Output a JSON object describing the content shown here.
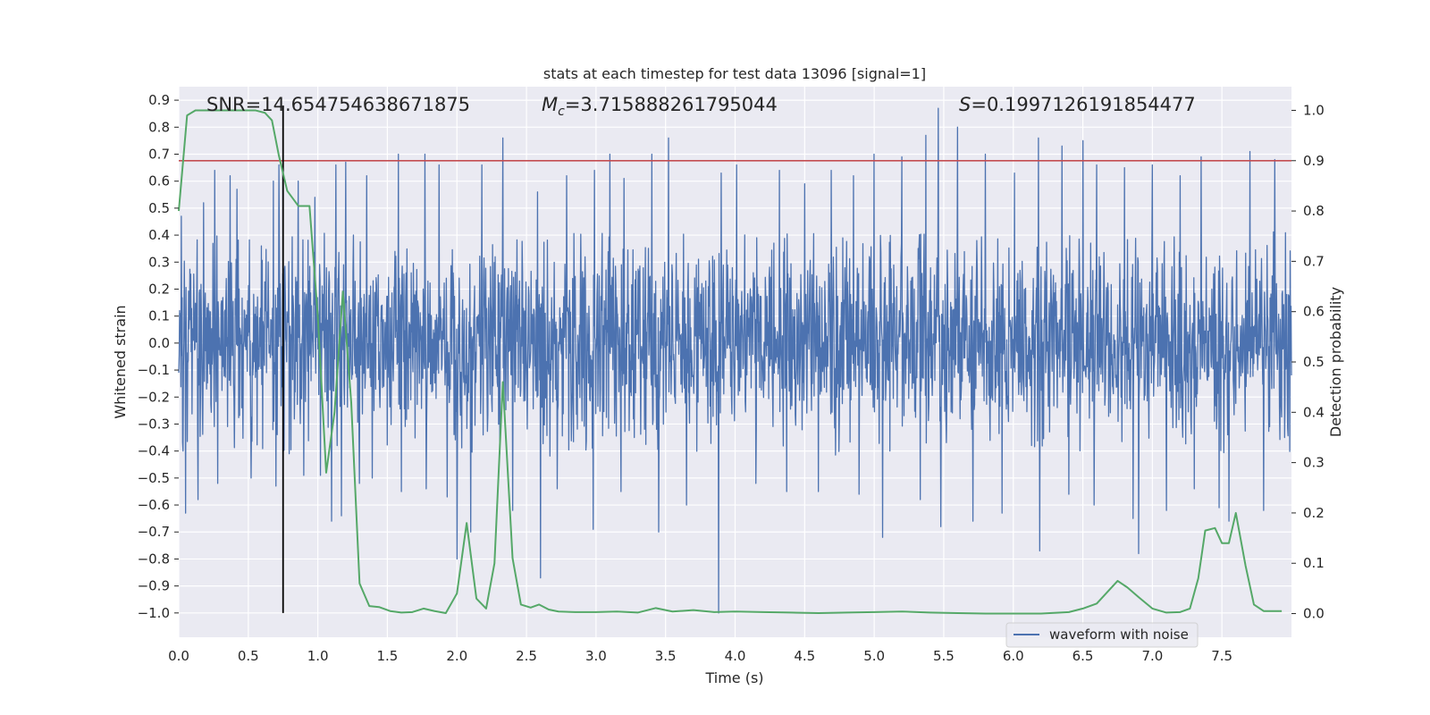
{
  "chart_data": {
    "type": "line",
    "title": "stats at each timestep for test data 13096 [signal=1]",
    "xlabel": "Time (s)",
    "ylabel": "Whitened strain",
    "ylabel_right": "Detection probability",
    "xlim": [
      0.0,
      8.0
    ],
    "ylim": [
      -1.09,
      0.95
    ],
    "ylim_right": [
      -0.047,
      1.047
    ],
    "xticks": [
      0.0,
      0.5,
      1.0,
      1.5,
      2.0,
      2.5,
      3.0,
      3.5,
      4.0,
      4.5,
      5.0,
      5.5,
      6.0,
      6.5,
      7.0,
      7.5
    ],
    "xtick_labels": [
      "0.0",
      "0.5",
      "1.0",
      "1.5",
      "2.0",
      "2.5",
      "3.0",
      "3.5",
      "4.0",
      "4.5",
      "5.0",
      "5.5",
      "6.0",
      "6.5",
      "7.0",
      "7.5"
    ],
    "yticks": [
      0.9,
      0.8,
      0.7,
      0.6,
      0.5,
      0.4,
      0.3,
      0.2,
      0.1,
      0.0,
      -0.1,
      -0.2,
      -0.3,
      -0.4,
      -0.5,
      -0.6,
      -0.7,
      -0.8,
      -0.9,
      -1.0
    ],
    "ytick_labels": [
      "0.9",
      "0.8",
      "0.7",
      "0.6",
      "0.5",
      "0.4",
      "0.3",
      "0.2",
      "0.1",
      "0.0",
      "−0.1",
      "−0.2",
      "−0.3",
      "−0.4",
      "−0.5",
      "−0.6",
      "−0.7",
      "−0.8",
      "−0.9",
      "−1.0"
    ],
    "yticks_right": [
      1.0,
      0.9,
      0.8,
      0.7,
      0.6,
      0.5,
      0.4,
      0.3,
      0.2,
      0.1,
      0.0
    ],
    "ytick_labels_right": [
      "1.0",
      "0.9",
      "0.8",
      "0.7",
      "0.6",
      "0.5",
      "0.4",
      "0.3",
      "0.2",
      "0.1",
      "0.0"
    ],
    "annotations": {
      "snr": "SNR=14.654754638671875",
      "mc_symbol": "M",
      "mc_sub": "c",
      "mc_value": "=3.715888261795044",
      "s_symbol": "S",
      "s_value": "=0.1997126191854477"
    },
    "legend": {
      "label": "waveform with noise",
      "position": "lower-right"
    },
    "threshold_line": {
      "axis": "right",
      "value": 0.9,
      "color": "#c44e52"
    },
    "marker_line": {
      "x": 0.75,
      "y_from": -1.0,
      "y_to": 0.88,
      "color": "#000000"
    },
    "waveform": {
      "name": "waveform with noise",
      "color": "#4c72b0",
      "t_start": 0.0,
      "t_end": 8.0,
      "typical_envelope": [
        -0.42,
        0.42
      ],
      "peaks_up": [
        [
          0.02,
          0.47
        ],
        [
          0.05,
          0.55
        ],
        [
          0.18,
          0.52
        ],
        [
          0.26,
          0.64
        ],
        [
          0.37,
          0.62
        ],
        [
          0.42,
          0.57
        ],
        [
          0.52,
          0.66
        ],
        [
          0.68,
          0.6
        ],
        [
          0.72,
          0.66
        ],
        [
          0.86,
          0.6
        ],
        [
          0.98,
          0.54
        ],
        [
          1.13,
          0.66
        ],
        [
          1.2,
          0.67
        ],
        [
          1.35,
          0.62
        ],
        [
          1.58,
          0.7
        ],
        [
          1.77,
          0.7
        ],
        [
          1.87,
          0.66
        ],
        [
          2.1,
          0.58
        ],
        [
          2.18,
          0.66
        ],
        [
          2.33,
          0.76
        ],
        [
          2.58,
          0.56
        ],
        [
          2.79,
          0.62
        ],
        [
          2.99,
          0.64
        ],
        [
          3.1,
          0.7
        ],
        [
          3.2,
          0.61
        ],
        [
          3.4,
          0.7
        ],
        [
          3.52,
          0.76
        ],
        [
          3.65,
          0.61
        ],
        [
          3.9,
          0.63
        ],
        [
          4.01,
          0.66
        ],
        [
          4.32,
          0.64
        ],
        [
          4.5,
          0.59
        ],
        [
          4.69,
          0.64
        ],
        [
          4.85,
          0.62
        ],
        [
          5.0,
          0.7
        ],
        [
          5.2,
          0.69
        ],
        [
          5.37,
          0.77
        ],
        [
          5.46,
          0.87
        ],
        [
          5.6,
          0.8
        ],
        [
          5.8,
          0.7
        ],
        [
          6.01,
          0.63
        ],
        [
          6.18,
          0.76
        ],
        [
          6.35,
          0.73
        ],
        [
          6.5,
          0.75
        ],
        [
          6.6,
          0.66
        ],
        [
          6.8,
          0.65
        ],
        [
          7.0,
          0.66
        ],
        [
          7.2,
          0.62
        ],
        [
          7.35,
          0.69
        ],
        [
          7.55,
          0.63
        ],
        [
          7.7,
          0.71
        ],
        [
          7.88,
          0.68
        ],
        [
          7.95,
          0.58
        ]
      ],
      "peaks_down": [
        [
          0.03,
          -0.4
        ],
        [
          0.05,
          -0.63
        ],
        [
          0.14,
          -0.58
        ],
        [
          0.28,
          -0.52
        ],
        [
          0.52,
          -0.5
        ],
        [
          0.7,
          -0.53
        ],
        [
          0.9,
          -0.49
        ],
        [
          1.02,
          -0.49
        ],
        [
          1.1,
          -0.66
        ],
        [
          1.17,
          -0.64
        ],
        [
          1.3,
          -0.52
        ],
        [
          1.39,
          -0.5
        ],
        [
          1.6,
          -0.55
        ],
        [
          1.78,
          -0.54
        ],
        [
          1.93,
          -0.57
        ],
        [
          2.0,
          -0.8
        ],
        [
          2.1,
          -0.7
        ],
        [
          2.4,
          -0.62
        ],
        [
          2.6,
          -0.87
        ],
        [
          2.72,
          -0.54
        ],
        [
          2.98,
          -0.69
        ],
        [
          3.18,
          -0.55
        ],
        [
          3.45,
          -0.7
        ],
        [
          3.65,
          -0.6
        ],
        [
          3.88,
          -1.0
        ],
        [
          4.15,
          -0.52
        ],
        [
          4.37,
          -0.55
        ],
        [
          4.6,
          -0.55
        ],
        [
          4.89,
          -0.56
        ],
        [
          5.06,
          -0.72
        ],
        [
          5.33,
          -0.58
        ],
        [
          5.48,
          -0.68
        ],
        [
          5.71,
          -0.66
        ],
        [
          5.92,
          -0.63
        ],
        [
          6.19,
          -0.77
        ],
        [
          6.4,
          -0.56
        ],
        [
          6.58,
          -0.6
        ],
        [
          6.86,
          -0.65
        ],
        [
          6.9,
          -0.78
        ],
        [
          7.1,
          -0.62
        ],
        [
          7.3,
          -0.54
        ],
        [
          7.48,
          -0.61
        ],
        [
          7.55,
          -0.66
        ],
        [
          7.8,
          -0.62
        ],
        [
          7.95,
          -0.35
        ]
      ]
    },
    "detection_probability": {
      "name": "detection probability",
      "color": "#55a868",
      "axis": "right",
      "x": [
        0.0,
        0.06,
        0.12,
        0.25,
        0.4,
        0.55,
        0.62,
        0.67,
        0.72,
        0.78,
        0.86,
        0.94,
        1.0,
        1.06,
        1.12,
        1.18,
        1.24,
        1.3,
        1.37,
        1.44,
        1.52,
        1.6,
        1.68,
        1.76,
        1.84,
        1.92,
        2.0,
        2.07,
        2.14,
        2.21,
        2.27,
        2.33,
        2.4,
        2.46,
        2.53,
        2.59,
        2.66,
        2.73,
        2.85,
        3.0,
        3.15,
        3.3,
        3.43,
        3.55,
        3.7,
        3.85,
        4.0,
        4.2,
        4.4,
        4.6,
        4.8,
        5.0,
        5.2,
        5.4,
        5.6,
        5.8,
        6.0,
        6.2,
        6.4,
        6.5,
        6.6,
        6.75,
        6.82,
        6.9,
        7.0,
        7.1,
        7.2,
        7.27,
        7.33,
        7.38,
        7.45,
        7.5,
        7.55,
        7.6,
        7.67,
        7.73,
        7.8,
        7.86,
        7.93
      ],
      "y": [
        0.8,
        0.99,
        1.0,
        1.0,
        1.0,
        1.0,
        0.995,
        0.98,
        0.91,
        0.84,
        0.81,
        0.81,
        0.59,
        0.28,
        0.4,
        0.64,
        0.42,
        0.06,
        0.015,
        0.013,
        0.005,
        0.002,
        0.003,
        0.01,
        0.005,
        0.001,
        0.04,
        0.18,
        0.03,
        0.01,
        0.1,
        0.46,
        0.11,
        0.018,
        0.012,
        0.018,
        0.008,
        0.004,
        0.003,
        0.003,
        0.004,
        0.002,
        0.011,
        0.004,
        0.007,
        0.003,
        0.004,
        0.003,
        0.002,
        0.001,
        0.002,
        0.003,
        0.004,
        0.002,
        0.001,
        0.0,
        0.0,
        0.0,
        0.003,
        0.01,
        0.02,
        0.065,
        0.052,
        0.033,
        0.01,
        0.002,
        0.003,
        0.01,
        0.07,
        0.165,
        0.17,
        0.14,
        0.14,
        0.2,
        0.095,
        0.018,
        0.005,
        0.005,
        0.005
      ]
    }
  }
}
